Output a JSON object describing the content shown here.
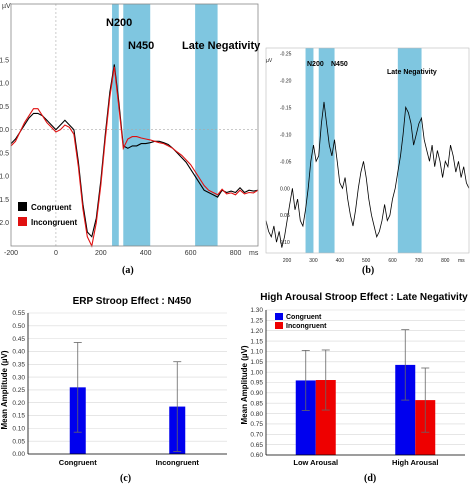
{
  "chart_data": [
    {
      "id": "a",
      "type": "line",
      "caption": "(a)",
      "unit_label": "µV",
      "xunit": "ms",
      "xlim": [
        -200,
        900
      ],
      "ylim": [
        -2.7,
        2.5
      ],
      "y_inverted": true,
      "xticks": [
        -200,
        0,
        200,
        400,
        600,
        800
      ],
      "yticks": [
        -2.5,
        -2.0,
        -1.5,
        -1.0,
        -0.5,
        0.0,
        0.5,
        1.0,
        1.5,
        2.0,
        2.5
      ],
      "ytick_labels": [
        "",
        "",
        "-1.5",
        "-1.0",
        "-0.5",
        "0.0",
        "0.5",
        "1.0",
        "1.5",
        "2.0",
        ""
      ],
      "windows": [
        {
          "label": "N200",
          "from": 250,
          "to": 280
        },
        {
          "label": "N450",
          "from": 300,
          "to": 420
        },
        {
          "label": "Late Negativity",
          "from": 620,
          "to": 720
        }
      ],
      "series": [
        {
          "name": "Congruent",
          "color": "#000000",
          "x": [
            -200,
            -180,
            -160,
            -140,
            -120,
            -100,
            -80,
            -60,
            -40,
            -20,
            0,
            20,
            40,
            60,
            80,
            100,
            120,
            140,
            160,
            180,
            200,
            220,
            240,
            260,
            280,
            300,
            320,
            340,
            360,
            380,
            400,
            420,
            440,
            460,
            480,
            500,
            520,
            540,
            560,
            580,
            600,
            620,
            640,
            660,
            680,
            700,
            720,
            740,
            760,
            780,
            800,
            820,
            840,
            860,
            880,
            900
          ],
          "y": [
            0.3,
            0.2,
            0.05,
            -0.1,
            -0.25,
            -0.35,
            -0.35,
            -0.3,
            -0.2,
            -0.1,
            0.0,
            -0.1,
            -0.2,
            -0.1,
            0.0,
            0.7,
            1.6,
            2.2,
            2.3,
            1.9,
            1.1,
            0.1,
            -0.8,
            -1.4,
            -0.6,
            0.35,
            0.4,
            0.35,
            0.35,
            0.3,
            0.3,
            0.28,
            0.25,
            0.25,
            0.28,
            0.32,
            0.4,
            0.5,
            0.6,
            0.7,
            0.85,
            1.0,
            1.15,
            1.3,
            1.35,
            1.4,
            1.45,
            1.3,
            1.35,
            1.32,
            1.35,
            1.25,
            1.35,
            1.3,
            1.32,
            1.3
          ]
        },
        {
          "name": "Incongruent",
          "color": "#e01010",
          "x": [
            -200,
            -180,
            -160,
            -140,
            -120,
            -100,
            -80,
            -60,
            -40,
            -20,
            0,
            20,
            40,
            60,
            80,
            100,
            120,
            140,
            160,
            180,
            200,
            220,
            240,
            260,
            280,
            300,
            320,
            340,
            360,
            380,
            400,
            420,
            440,
            460,
            480,
            500,
            520,
            540,
            560,
            580,
            600,
            620,
            640,
            660,
            680,
            700,
            720,
            740,
            760,
            780,
            800,
            820,
            840,
            860,
            880,
            900
          ],
          "y": [
            0.35,
            0.25,
            0.05,
            -0.15,
            -0.3,
            -0.45,
            -0.45,
            -0.3,
            -0.15,
            -0.05,
            0.05,
            0.0,
            -0.1,
            -0.05,
            0.1,
            0.8,
            1.7,
            2.3,
            2.5,
            2.0,
            1.2,
            0.2,
            -0.7,
            -1.35,
            -0.5,
            0.4,
            0.2,
            0.15,
            0.15,
            0.18,
            0.2,
            0.22,
            0.25,
            0.28,
            0.3,
            0.35,
            0.4,
            0.48,
            0.55,
            0.65,
            0.75,
            0.9,
            1.05,
            1.2,
            1.3,
            1.35,
            1.4,
            1.28,
            1.38,
            1.36,
            1.4,
            1.3,
            1.38,
            1.35,
            1.36,
            1.3
          ]
        }
      ]
    },
    {
      "id": "b",
      "type": "line",
      "caption": "(b)",
      "unit_label": "µV",
      "xunit": "ms",
      "xlim": [
        120,
        890
      ],
      "ylim": [
        0.12,
        -0.26
      ],
      "xticks": [
        200,
        300,
        400,
        500,
        600,
        700,
        800
      ],
      "yticks": [
        0.1,
        0.05,
        0.0,
        -0.05,
        -0.1,
        -0.15,
        -0.2,
        -0.25
      ],
      "ytick_labels": [
        "0.10",
        "0.05",
        "0.00",
        "-0.05",
        "-0.10",
        "-0.15",
        "-0.20",
        "-0.25"
      ],
      "windows": [
        {
          "label": "N200",
          "from": 270,
          "to": 300
        },
        {
          "label": "N450",
          "from": 320,
          "to": 380
        },
        {
          "label": "Late Negativity",
          "from": 620,
          "to": 710
        }
      ],
      "series": [
        {
          "name": "",
          "color": "#000000",
          "x": [
            120,
            130,
            140,
            150,
            160,
            170,
            180,
            190,
            200,
            210,
            220,
            230,
            240,
            250,
            260,
            270,
            280,
            290,
            300,
            310,
            320,
            330,
            340,
            350,
            360,
            370,
            380,
            390,
            400,
            410,
            420,
            430,
            440,
            450,
            460,
            470,
            480,
            490,
            500,
            510,
            520,
            530,
            540,
            550,
            560,
            570,
            580,
            590,
            600,
            610,
            620,
            630,
            640,
            650,
            660,
            670,
            680,
            690,
            700,
            710,
            720,
            730,
            740,
            750,
            760,
            770,
            780,
            790,
            800,
            810,
            820,
            830,
            840,
            850,
            860,
            870,
            880,
            890
          ],
          "y": [
            0.06,
            0.08,
            0.09,
            0.07,
            0.1,
            0.08,
            0.11,
            0.09,
            0.06,
            0.03,
            0.0,
            0.04,
            0.02,
            0.06,
            0.07,
            0.04,
            0.0,
            -0.05,
            -0.08,
            -0.05,
            -0.06,
            -0.12,
            -0.16,
            -0.12,
            -0.08,
            -0.06,
            -0.09,
            -0.05,
            -0.01,
            0.0,
            -0.02,
            0.02,
            0.05,
            0.07,
            0.04,
            0.0,
            -0.03,
            -0.05,
            -0.02,
            0.02,
            0.05,
            0.07,
            0.09,
            0.08,
            0.06,
            0.03,
            0.06,
            0.05,
            0.02,
            0.0,
            -0.03,
            -0.06,
            -0.1,
            -0.15,
            -0.14,
            -0.12,
            -0.08,
            -0.1,
            -0.12,
            -0.13,
            -0.09,
            -0.07,
            -0.05,
            -0.08,
            -0.04,
            -0.07,
            -0.05,
            -0.02,
            -0.05,
            -0.04,
            -0.08,
            -0.06,
            -0.03,
            -0.05,
            -0.02,
            -0.04,
            -0.01,
            0.0
          ]
        }
      ]
    },
    {
      "id": "c",
      "type": "bar",
      "caption": "(c)",
      "title": "ERP Stroop Effect : N450",
      "ylabel": "Mean Amplitude (µV)",
      "ylim": [
        0,
        0.55
      ],
      "yticks": [
        0,
        0.05,
        0.1,
        0.15,
        0.2,
        0.25,
        0.3,
        0.35,
        0.4,
        0.45,
        0.5,
        0.55
      ],
      "ytick_labels": [
        "0.00",
        "0.05",
        "0.10",
        "0.15",
        "0.20",
        "0.25",
        "0.30",
        "0.35",
        "0.40",
        "0.45",
        "0.50",
        "0.55"
      ],
      "categories": [
        "Congruent",
        "Incongruent"
      ],
      "values": [
        0.26,
        0.185
      ],
      "errors": [
        0.175,
        0.175
      ],
      "color": "#0000ee"
    },
    {
      "id": "d",
      "type": "bar",
      "caption": "(d)",
      "title": "High Arousal Stroop Effect : Late Negativity",
      "ylabel": "Mean Amplitude (µV)",
      "ylim": [
        0.6,
        1.3
      ],
      "yticks": [
        0.6,
        0.65,
        0.7,
        0.75,
        0.8,
        0.85,
        0.9,
        0.95,
        1.0,
        1.05,
        1.1,
        1.15,
        1.2,
        1.25,
        1.3
      ],
      "ytick_labels": [
        "0.60",
        "0.65",
        "0.70",
        "0.75",
        "0.80",
        "0.85",
        "0.90",
        "0.95",
        "1.00",
        "1.05",
        "1.10",
        "1.15",
        "1.20",
        "1.25",
        "1.30"
      ],
      "categories": [
        "Low Arousal",
        "High Arousal"
      ],
      "legend_position": "top-left",
      "series": [
        {
          "name": "Congruent",
          "color": "#0000ee",
          "values": [
            0.96,
            1.035
          ],
          "errors": [
            0.145,
            0.17
          ]
        },
        {
          "name": "Incongruent",
          "color": "#ee0000",
          "values": [
            0.962,
            0.865
          ],
          "errors": [
            0.145,
            0.155
          ]
        }
      ]
    }
  ]
}
